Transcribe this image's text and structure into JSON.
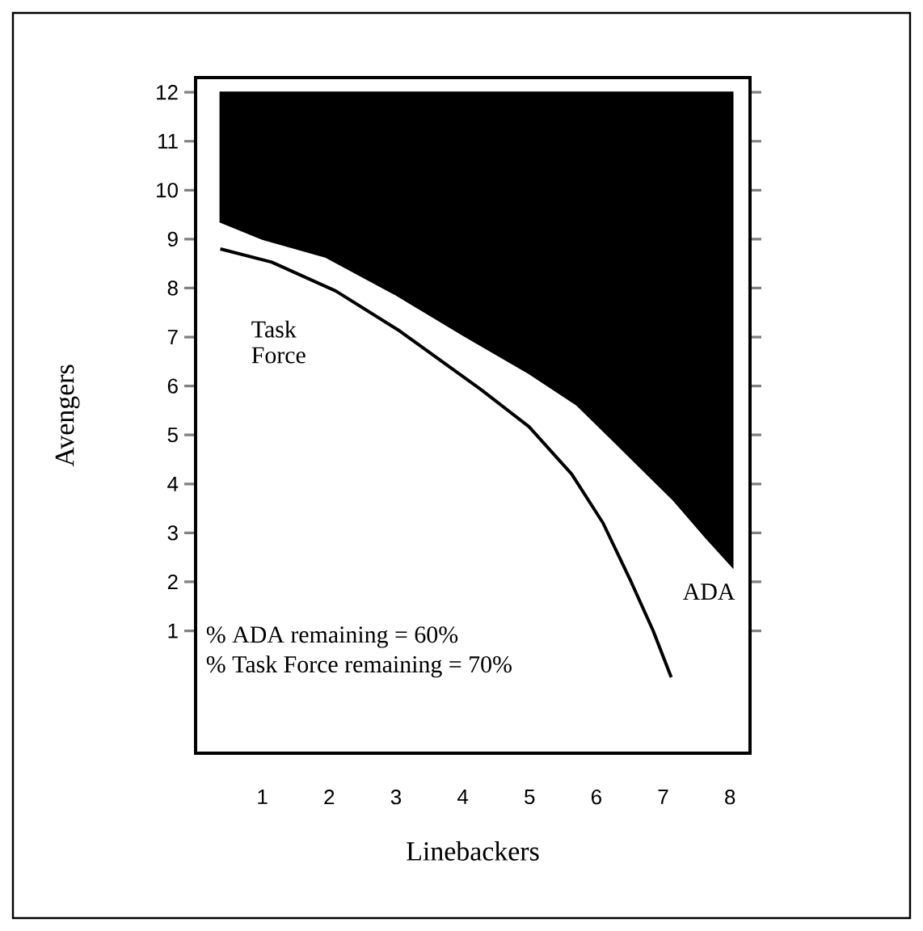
{
  "chart_data": {
    "type": "line",
    "xlabel": "Linebackers",
    "ylabel": "Avengers",
    "xlim": [
      0,
      8.3
    ],
    "ylim": [
      -1.5,
      12.3
    ],
    "xticks": [
      1,
      2,
      3,
      4,
      5,
      6,
      7,
      8
    ],
    "yticks": [
      1,
      2,
      3,
      4,
      5,
      6,
      7,
      8,
      9,
      10,
      11,
      12
    ],
    "series": [
      {
        "name": "ADA",
        "type": "area",
        "color": "#000000",
        "x": [
          0.37,
          0.37,
          1.0,
          1.94,
          2.98,
          4.03,
          4.99,
          5.71,
          6.36,
          7.16,
          7.64,
          8.04,
          8.04
        ],
        "values": [
          12,
          9.35,
          9.0,
          8.64,
          7.88,
          7.02,
          6.26,
          5.61,
          4.74,
          3.66,
          2.9,
          2.3,
          12
        ]
      },
      {
        "name": "Task Force",
        "color": "#000000",
        "x": [
          0.37,
          1.14,
          2.1,
          3.06,
          4.27,
          4.99,
          5.63,
          6.1,
          6.52,
          6.85,
          7.12
        ],
        "values": [
          8.8,
          8.53,
          7.94,
          7.12,
          5.93,
          5.17,
          4.2,
          3.2,
          2.0,
          1.0,
          0.05
        ]
      }
    ],
    "annotations": [
      "% ADA remaining = 60%",
      "% Task Force remaining = 70%"
    ],
    "grid": false
  }
}
